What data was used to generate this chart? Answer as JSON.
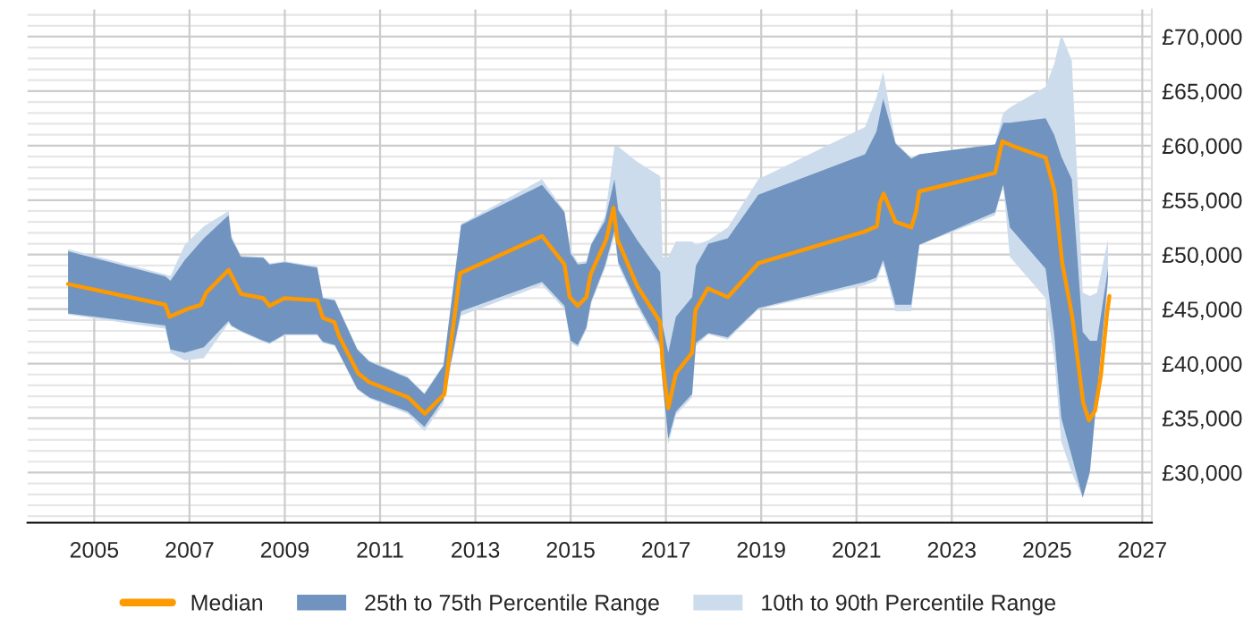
{
  "chart_data": {
    "type": "line",
    "x": [
      2004.45,
      2006.49,
      2006.6,
      2006.9,
      2007.3,
      2007.82,
      2007.88,
      2008.08,
      2008.55,
      2008.68,
      2009.0,
      2009.68,
      2009.8,
      2010.05,
      2010.52,
      2010.77,
      2011.58,
      2011.93,
      2012.33,
      2012.7,
      2014.4,
      2014.87,
      2015.0,
      2015.15,
      2015.33,
      2015.43,
      2015.72,
      2015.92,
      2016.0,
      2016.4,
      2016.88,
      2016.93,
      2017.05,
      2017.21,
      2017.55,
      2017.63,
      2017.89,
      2018.3,
      2018.94,
      2021.18,
      2021.42,
      2021.56,
      2021.82,
      2022.15,
      2022.32,
      2023.91,
      2024.08,
      2024.22,
      2024.97,
      2025.15,
      2025.3,
      2025.52,
      2025.75,
      2025.9,
      2026.05,
      2026.28
    ],
    "series": [
      {
        "name": "Median",
        "color": "#ff9900",
        "x": [
          2004.45,
          2006.49,
          2006.58,
          2006.95,
          2007.24,
          2007.35,
          2007.82,
          2008.08,
          2008.55,
          2008.68,
          2008.99,
          2009.68,
          2009.8,
          2010.04,
          2010.14,
          2010.54,
          2010.77,
          2011.59,
          2011.94,
          2012.35,
          2012.68,
          2014.4,
          2014.87,
          2014.98,
          2015.15,
          2015.33,
          2015.42,
          2015.75,
          2015.9,
          2015.98,
          2016.4,
          2016.88,
          2016.93,
          2017.05,
          2017.21,
          2017.55,
          2017.62,
          2017.88,
          2018.3,
          2018.94,
          2021.16,
          2021.43,
          2021.49,
          2021.57,
          2021.82,
          2022.15,
          2022.25,
          2022.32,
          2023.91,
          2024.06,
          2024.26,
          2024.97,
          2025.16,
          2025.32,
          2025.53,
          2025.76,
          2025.88,
          2026.01,
          2026.13,
          2026.26,
          2026.31
        ],
        "values": [
          47300,
          45400,
          44300,
          45000,
          45400,
          46500,
          48600,
          46400,
          46000,
          45300,
          46000,
          45800,
          44200,
          43800,
          42500,
          39100,
          38300,
          36900,
          35400,
          37200,
          48300,
          51700,
          49100,
          46100,
          45300,
          46100,
          48200,
          51400,
          54300,
          51400,
          47100,
          43800,
          40000,
          35900,
          39100,
          41000,
          44900,
          46900,
          46100,
          49200,
          52100,
          52600,
          54700,
          55600,
          53000,
          52500,
          53900,
          55800,
          57500,
          60400,
          60000,
          58900,
          55800,
          49200,
          44300,
          36400,
          34800,
          35700,
          38900,
          44600,
          46200
        ]
      },
      {
        "name": "25th to 75th Percentile Range",
        "type": "area",
        "color": "#7094bf",
        "lower": [
          44600,
          43500,
          41300,
          41000,
          41500,
          43900,
          43500,
          43000,
          42100,
          41900,
          42700,
          42700,
          42000,
          41700,
          37700,
          36900,
          35600,
          34200,
          36700,
          44800,
          47500,
          45300,
          42100,
          41700,
          43300,
          45700,
          49000,
          52200,
          49300,
          45500,
          41700,
          38300,
          33100,
          35600,
          37200,
          41900,
          42800,
          42400,
          45100,
          47500,
          47900,
          49500,
          45400,
          45400,
          50900,
          53900,
          56400,
          52500,
          48700,
          42700,
          35000,
          31500,
          27700,
          30100,
          37200,
          47900
        ],
        "values": [
          null,
          null,
          null,
          null,
          null,
          null,
          null,
          null,
          null,
          null,
          null,
          null,
          null,
          null,
          null,
          null,
          null,
          null,
          null,
          null,
          null,
          null,
          null,
          null,
          null,
          null,
          null,
          null,
          null,
          null,
          null,
          null,
          null,
          null,
          null,
          null,
          null,
          null,
          null,
          null,
          null,
          null,
          null,
          null,
          null,
          null,
          null,
          null,
          null,
          null,
          null,
          null,
          null,
          null,
          null,
          null
        ],
        "upper": [
          50300,
          48000,
          47600,
          49500,
          51500,
          53600,
          51500,
          49800,
          49700,
          49100,
          49300,
          48800,
          46000,
          45800,
          41300,
          40200,
          38700,
          37200,
          39800,
          52700,
          56400,
          53900,
          50100,
          49100,
          49200,
          50900,
          53100,
          56900,
          54100,
          51300,
          48400,
          43500,
          41000,
          44300,
          46100,
          49000,
          51000,
          51500,
          55500,
          59200,
          61300,
          64300,
          60200,
          58800,
          59200,
          60100,
          62100,
          62100,
          62500,
          61000,
          59000,
          56900,
          42900,
          42100,
          42100,
          48700
        ]
      },
      {
        "name": "10th to 90th Percentile Range",
        "type": "area",
        "color": "#cddcec",
        "lower": [
          44500,
          43200,
          41000,
          40300,
          40500,
          43700,
          43400,
          42900,
          42000,
          41800,
          42600,
          42600,
          41900,
          41600,
          37600,
          36800,
          35400,
          33800,
          36300,
          44400,
          47200,
          45000,
          41900,
          41500,
          43100,
          45500,
          48700,
          51700,
          49000,
          45200,
          41300,
          38000,
          32600,
          35300,
          36900,
          41600,
          42700,
          42200,
          45000,
          47200,
          47600,
          49200,
          44800,
          44800,
          50900,
          53600,
          56400,
          49800,
          46000,
          40500,
          32800,
          30000,
          27700,
          29900,
          37200,
          47300
        ],
        "values": [
          null,
          null,
          null,
          null,
          null,
          null,
          null,
          null,
          null,
          null,
          null,
          null,
          null,
          null,
          null,
          null,
          null,
          null,
          null,
          null,
          null,
          null,
          null,
          null,
          null,
          null,
          null,
          null,
          null,
          null,
          null,
          null,
          null,
          null,
          null,
          null,
          null,
          null,
          null,
          null,
          null,
          null,
          null,
          null,
          null,
          null,
          null,
          null,
          null,
          null,
          null,
          null,
          null,
          null,
          null,
          null
        ],
        "upper": [
          50500,
          48200,
          48000,
          50900,
          52600,
          54000,
          51700,
          49900,
          49800,
          49200,
          49400,
          48900,
          46100,
          45900,
          41400,
          40300,
          38800,
          37300,
          39900,
          52800,
          56900,
          54000,
          50400,
          49300,
          49400,
          51000,
          53500,
          59900,
          59900,
          58500,
          57200,
          49800,
          49800,
          51200,
          51200,
          50900,
          51300,
          52500,
          56900,
          61700,
          64400,
          66800,
          60300,
          58900,
          59200,
          60100,
          63000,
          63500,
          65400,
          67500,
          70200,
          67800,
          46500,
          46200,
          46500,
          51400
        ]
      }
    ],
    "xlim": [
      2003.6,
      2027.2
    ],
    "xticks": [
      2005,
      2007,
      2009,
      2011,
      2013,
      2015,
      2017,
      2019,
      2021,
      2023,
      2025,
      2027
    ],
    "ylim": [
      25400,
      72500
    ],
    "yticks": [
      {
        "value": 26000,
        "label": null
      },
      {
        "value": 27000,
        "label": null
      },
      {
        "value": 28000,
        "label": null
      },
      {
        "value": 29000,
        "label": null
      },
      {
        "value": 30000,
        "label": "£30,000"
      },
      {
        "value": 31000,
        "label": null
      },
      {
        "value": 32000,
        "label": null
      },
      {
        "value": 33000,
        "label": null
      },
      {
        "value": 34000,
        "label": null
      },
      {
        "value": 35000,
        "label": "£35,000"
      },
      {
        "value": 36000,
        "label": null
      },
      {
        "value": 37000,
        "label": null
      },
      {
        "value": 38000,
        "label": null
      },
      {
        "value": 39000,
        "label": null
      },
      {
        "value": 40000,
        "label": "£40,000"
      },
      {
        "value": 41000,
        "label": null
      },
      {
        "value": 42000,
        "label": null
      },
      {
        "value": 43000,
        "label": null
      },
      {
        "value": 44000,
        "label": null
      },
      {
        "value": 45000,
        "label": "£45,000"
      },
      {
        "value": 46000,
        "label": null
      },
      {
        "value": 47000,
        "label": null
      },
      {
        "value": 48000,
        "label": null
      },
      {
        "value": 49000,
        "label": null
      },
      {
        "value": 50000,
        "label": "£50,000"
      },
      {
        "value": 51000,
        "label": null
      },
      {
        "value": 52000,
        "label": null
      },
      {
        "value": 53000,
        "label": null
      },
      {
        "value": 54000,
        "label": null
      },
      {
        "value": 55000,
        "label": "£55,000"
      },
      {
        "value": 56000,
        "label": null
      },
      {
        "value": 57000,
        "label": null
      },
      {
        "value": 58000,
        "label": null
      },
      {
        "value": 59000,
        "label": null
      },
      {
        "value": 60000,
        "label": "£60,000"
      },
      {
        "value": 61000,
        "label": null
      },
      {
        "value": 62000,
        "label": null
      },
      {
        "value": 63000,
        "label": null
      },
      {
        "value": 64000,
        "label": null
      },
      {
        "value": 65000,
        "label": "£65,000"
      },
      {
        "value": 66000,
        "label": null
      },
      {
        "value": 67000,
        "label": null
      },
      {
        "value": 68000,
        "label": null
      },
      {
        "value": 69000,
        "label": null
      },
      {
        "value": 70000,
        "label": "£70,000"
      },
      {
        "value": 71000,
        "label": null
      },
      {
        "value": 72000,
        "label": null
      }
    ],
    "grid": true,
    "legend": "bottom"
  }
}
